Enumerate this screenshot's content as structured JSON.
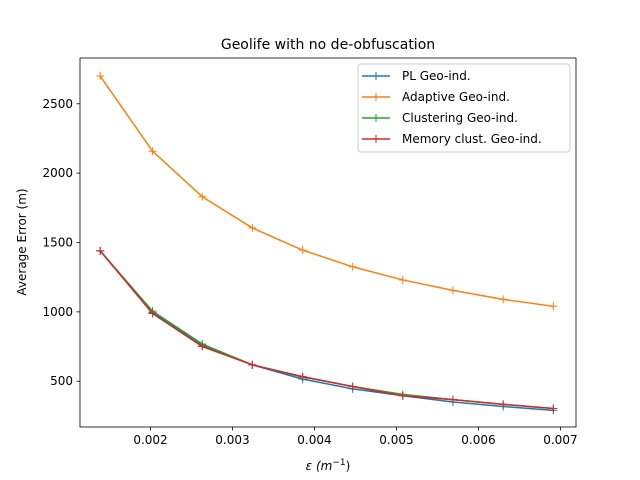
{
  "chart_data": {
    "type": "line",
    "title": "Geolife with no de-obfuscation",
    "xlabel": "ε (m⁻¹)",
    "xlabel_main": "ε (m",
    "xlabel_sup": "−1",
    "xlabel_close": ")",
    "ylabel": "Average Error (m)",
    "xlim": [
      0.00114,
      0.00719
    ],
    "ylim": [
      170,
      2830
    ],
    "xticks": [
      0.002,
      0.003,
      0.004,
      0.005,
      0.006,
      0.007
    ],
    "xtick_labels": [
      "0.002",
      "0.003",
      "0.004",
      "0.005",
      "0.006",
      "0.007"
    ],
    "yticks": [
      500,
      1000,
      1500,
      2000,
      2500
    ],
    "ytick_labels": [
      "500",
      "1000",
      "1500",
      "2000",
      "2500"
    ],
    "legend_position": "top-right",
    "x": [
      0.001386,
      0.002025,
      0.002631,
      0.003242,
      0.003856,
      0.004466,
      0.005077,
      0.005689,
      0.006302,
      0.006914
    ],
    "series": [
      {
        "name": "PL Geo-ind.",
        "color": "#1f77b4",
        "values": [
          1440,
          995,
          760,
          618,
          515,
          445,
          395,
          350,
          318,
          290
        ]
      },
      {
        "name": "Adaptive Geo-ind.",
        "color": "#ff7f0e",
        "values": [
          2700,
          2158,
          1830,
          1605,
          1445,
          1325,
          1230,
          1155,
          1090,
          1040
        ]
      },
      {
        "name": "Clustering Geo-ind.",
        "color": "#2ca02c",
        "values": [
          1440,
          1005,
          768,
          618,
          530,
          462,
          405,
          367,
          333,
          303
        ]
      },
      {
        "name": "Memory clust. Geo-ind.",
        "color": "#d62728",
        "values": [
          1440,
          988,
          750,
          618,
          533,
          462,
          395,
          367,
          333,
          303
        ]
      }
    ]
  }
}
